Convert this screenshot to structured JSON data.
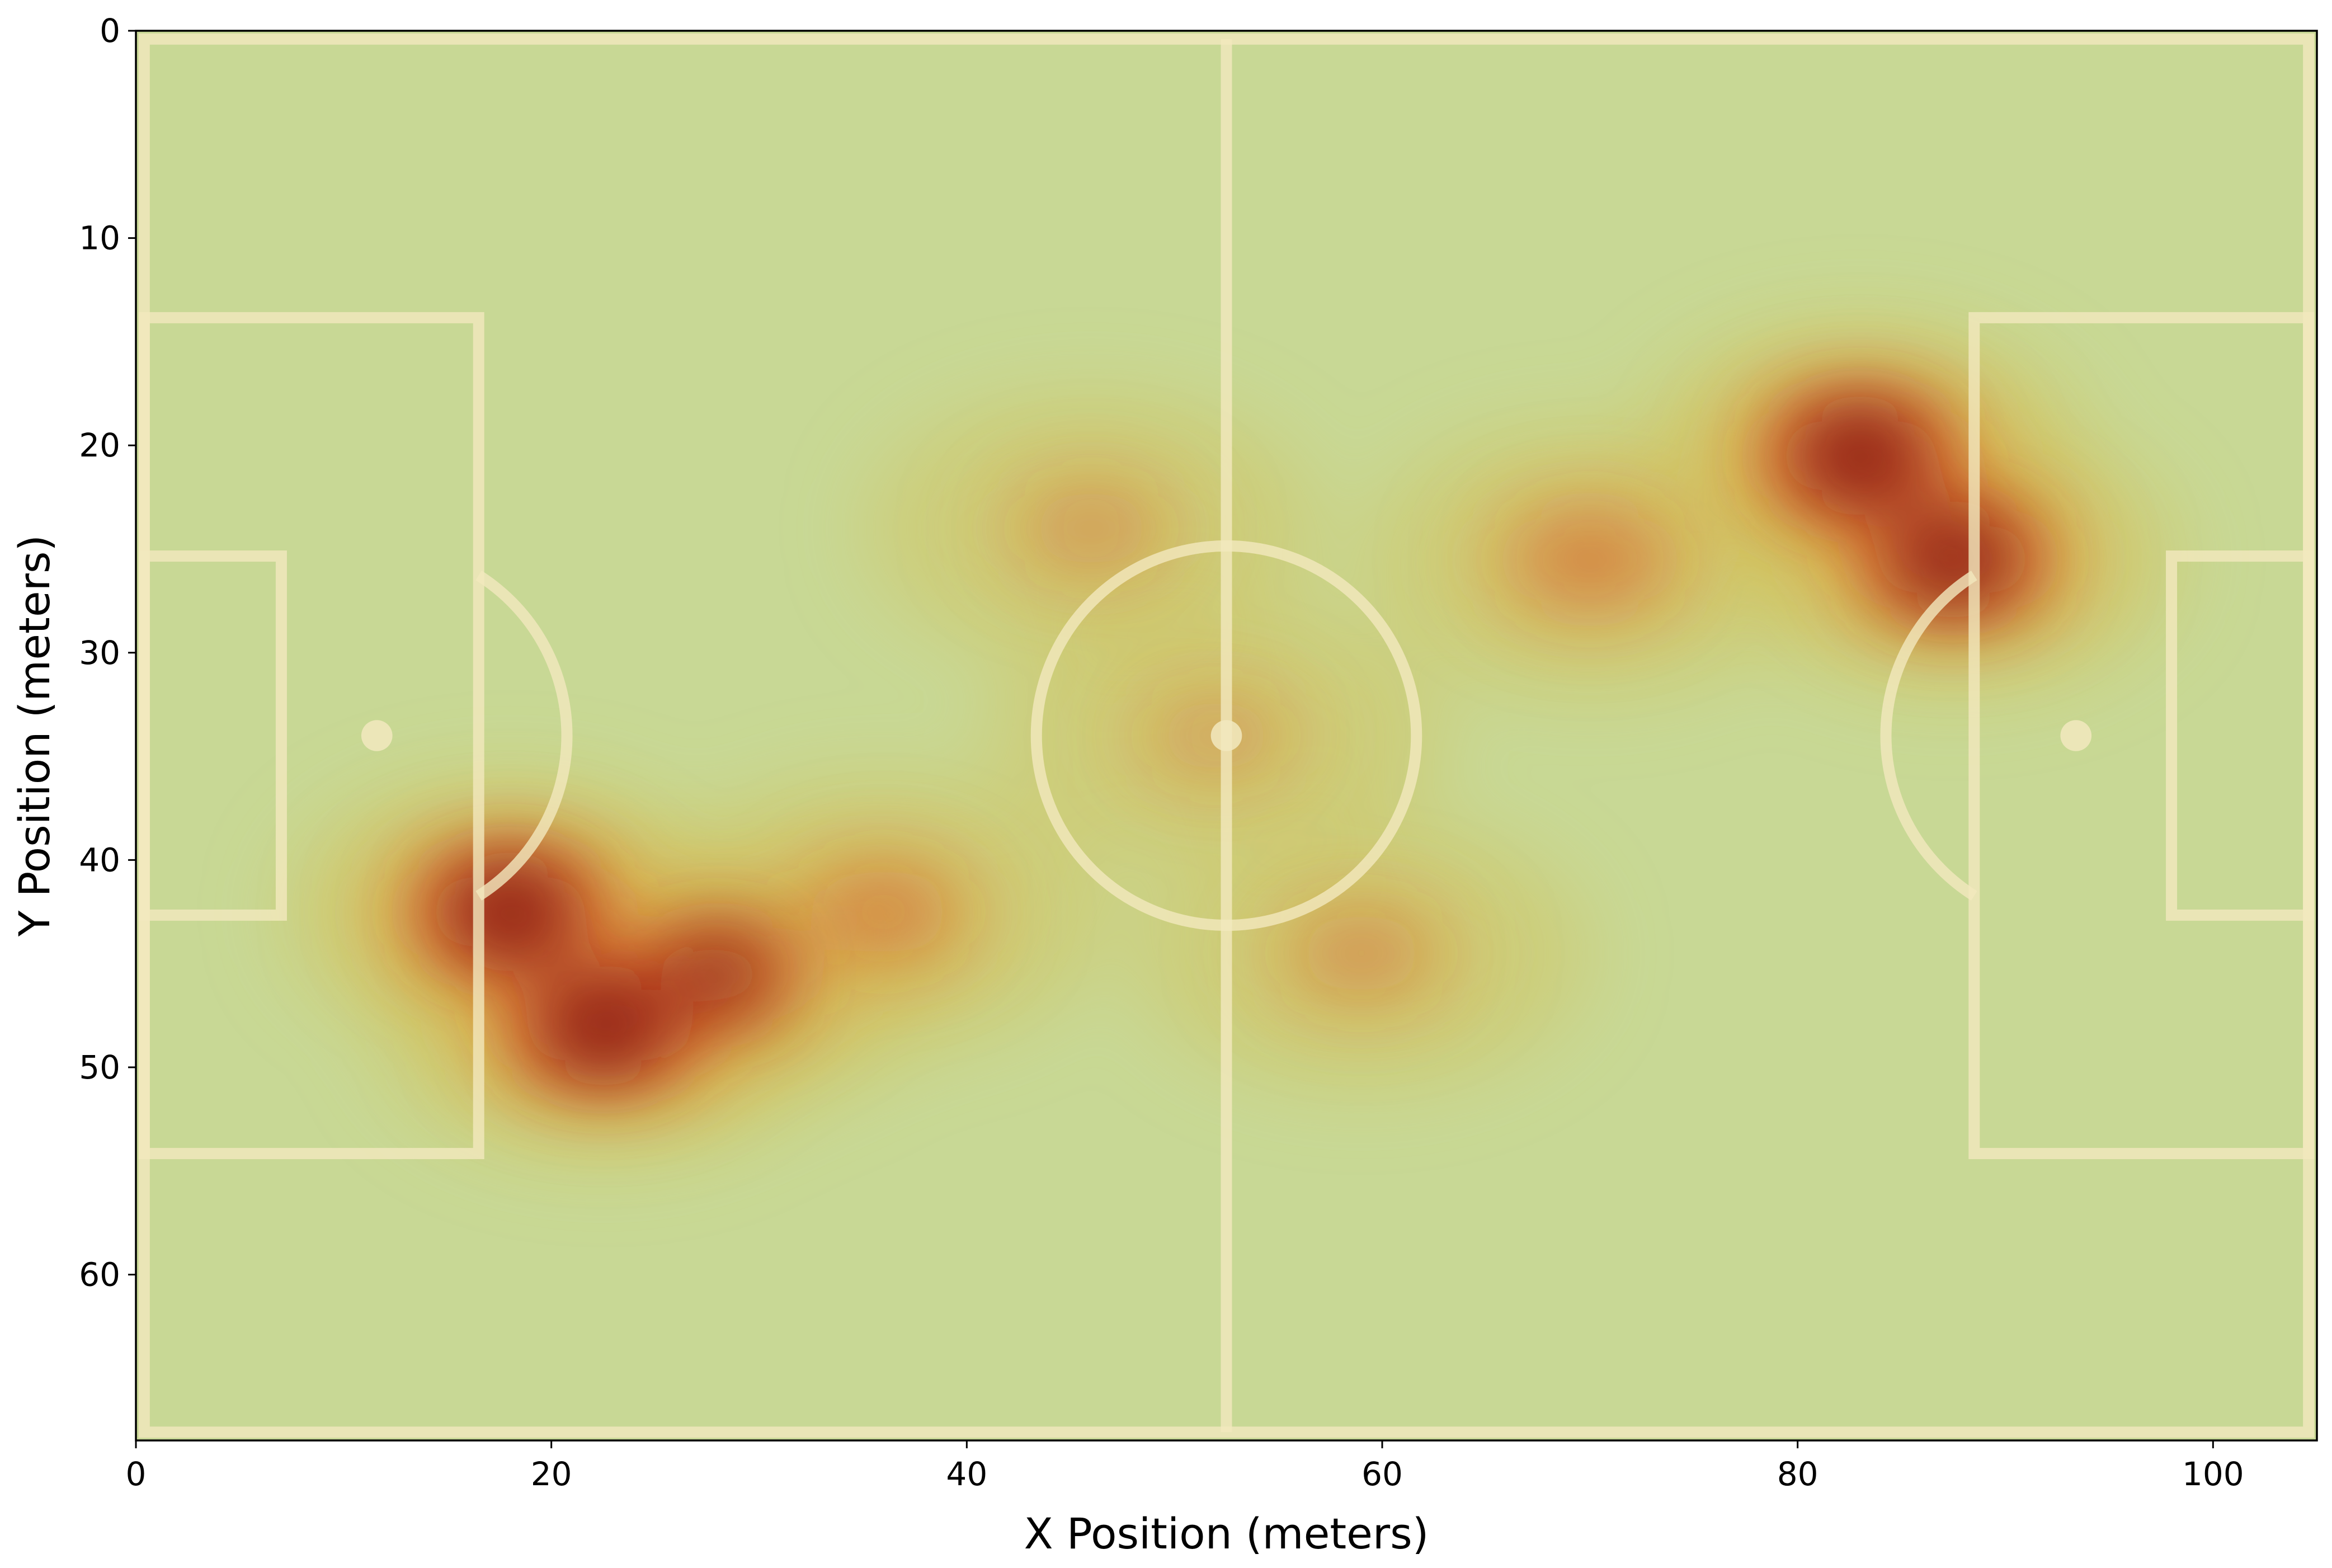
{
  "chart_data": {
    "type": "heatmap",
    "subtype": "kernel-density heatmap on football pitch",
    "title": "",
    "xlabel": "X Position (meters)",
    "ylabel": "Y Position (meters)",
    "xlim": [
      0,
      105
    ],
    "ylim": [
      68,
      0
    ],
    "y_inverted": true,
    "grid": false,
    "legend": "none",
    "x_ticks": [
      0,
      20,
      40,
      60,
      80,
      100
    ],
    "y_ticks": [
      0,
      10,
      20,
      30,
      40,
      50,
      60
    ],
    "pitch": {
      "length": 105,
      "width": 68,
      "halfway_x": 52.5,
      "center_circle_radius": 9.15,
      "penalty_area_depth": 16.5,
      "penalty_area_y": [
        13.84,
        54.16
      ],
      "goal_area_depth": 7,
      "goal_area_y": [
        25.34,
        42.66
      ],
      "penalty_spot_distance": 11,
      "line_color": "#f2e9be",
      "grass_color": "#c8d895"
    },
    "density_peaks": [
      {
        "x": 18,
        "y": 42.5,
        "intensity": 1.0
      },
      {
        "x": 22.5,
        "y": 48,
        "intensity": 1.0
      },
      {
        "x": 28,
        "y": 45.5,
        "intensity": 0.75
      },
      {
        "x": 36,
        "y": 42.5,
        "intensity": 0.55
      },
      {
        "x": 46,
        "y": 24,
        "intensity": 0.4
      },
      {
        "x": 52,
        "y": 34,
        "intensity": 0.35
      },
      {
        "x": 59,
        "y": 44.5,
        "intensity": 0.45
      },
      {
        "x": 70,
        "y": 25.5,
        "intensity": 0.6
      },
      {
        "x": 83,
        "y": 20.5,
        "intensity": 1.0
      },
      {
        "x": 87.5,
        "y": 25.5,
        "intensity": 0.95
      }
    ],
    "colormap": [
      "#c8d895",
      "#d3c15a",
      "#e89a3c",
      "#cc3a1f",
      "#8a1616",
      "#5a0f12"
    ]
  }
}
